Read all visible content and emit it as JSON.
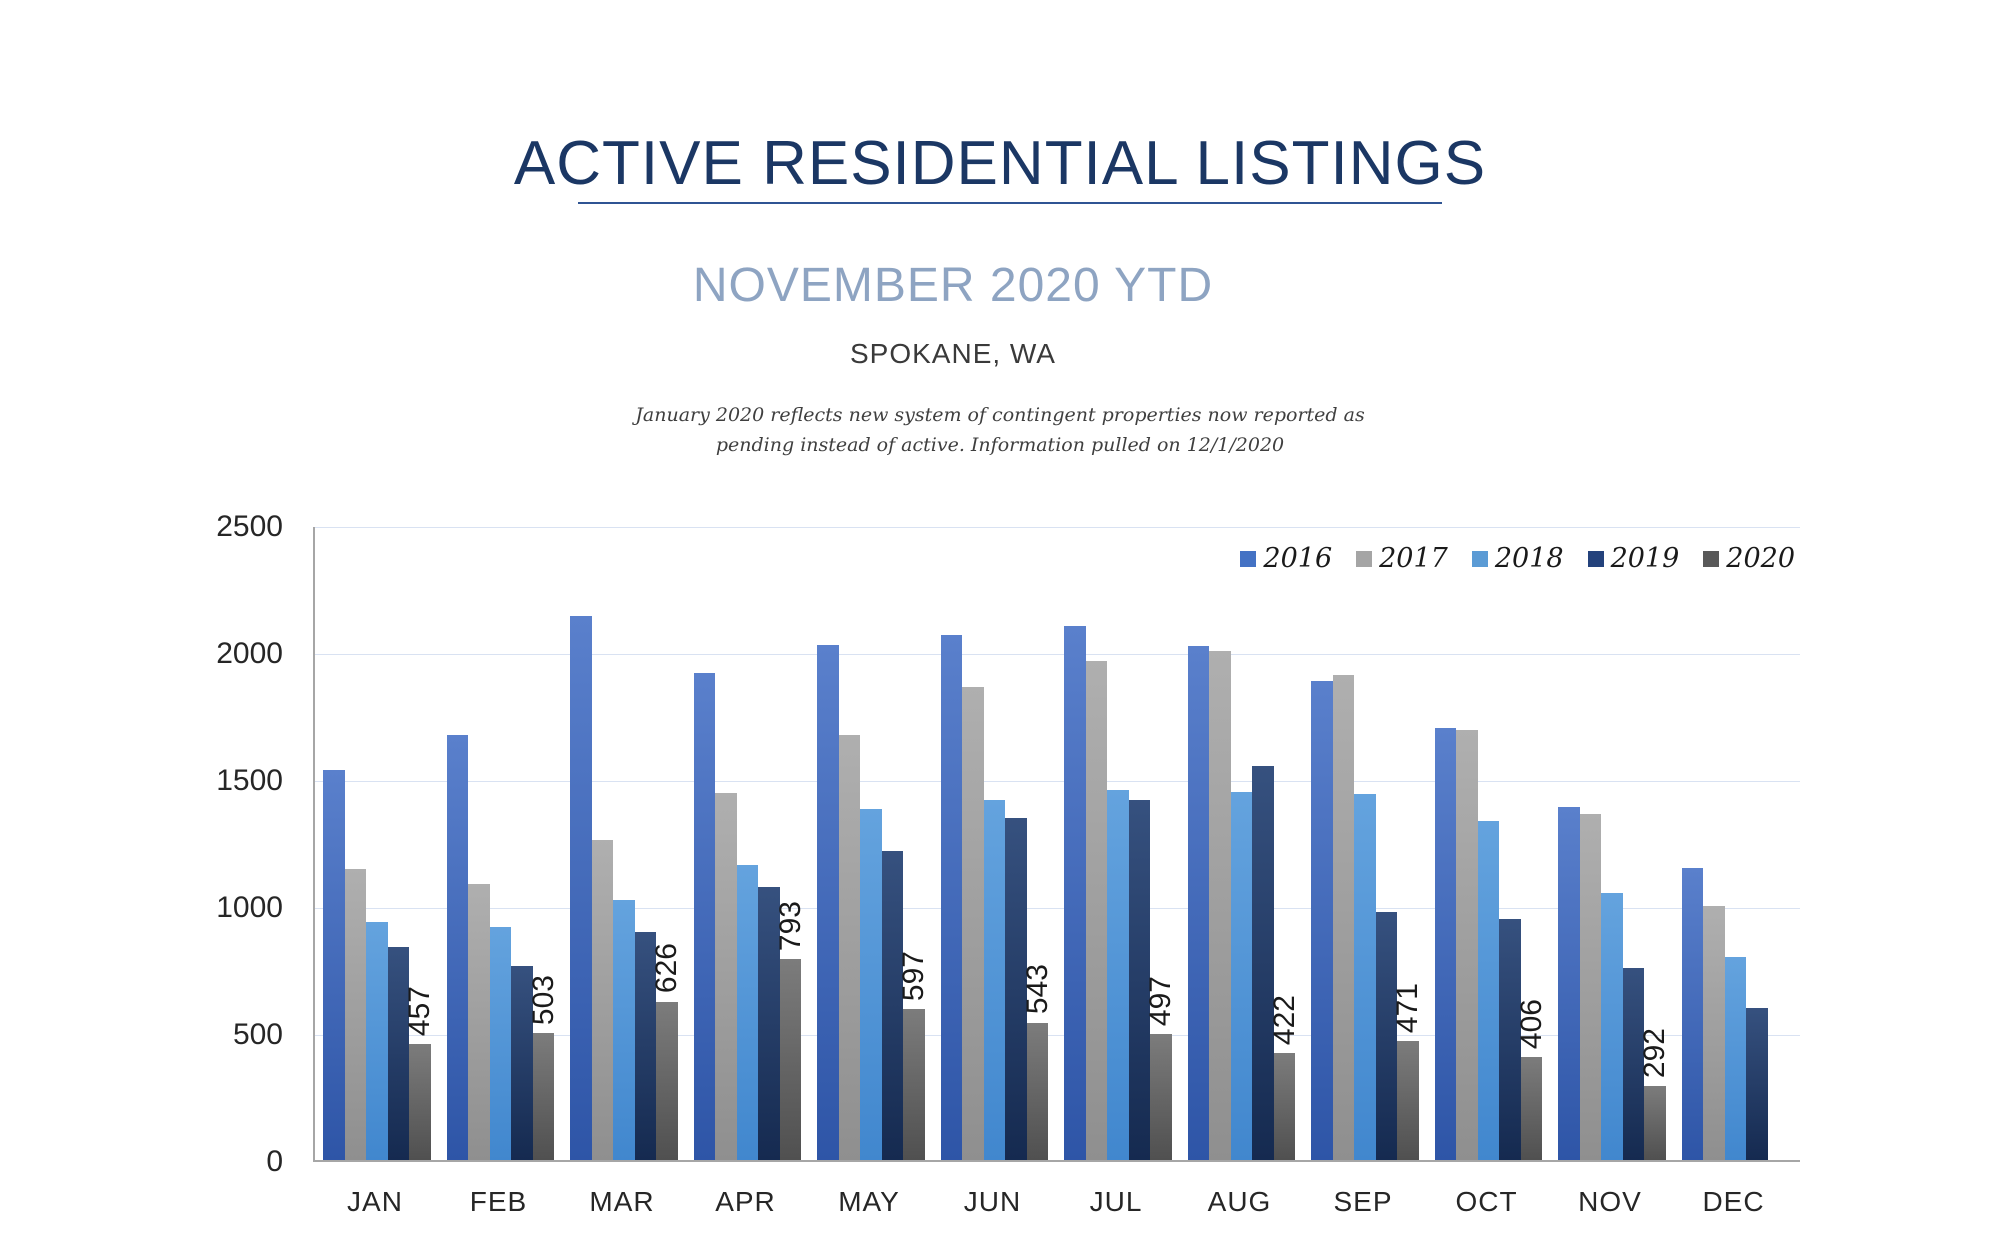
{
  "header": {
    "title": "ACTIVE RESIDENTIAL LISTINGS",
    "subtitle": "NOVEMBER 2020 YTD",
    "location": "SPOKANE, WA",
    "note_line1": "January 2020 reflects new system of contingent properties now reported as",
    "note_line2": "pending instead of active.  Information pulled on 12/1/2020"
  },
  "chart_data": {
    "type": "bar",
    "title": "ACTIVE RESIDENTIAL LISTINGS",
    "subtitle": "NOVEMBER 2020 YTD",
    "categories": [
      "JAN",
      "FEB",
      "MAR",
      "APR",
      "MAY",
      "JUN",
      "JUL",
      "AUG",
      "SEP",
      "OCT",
      "NOV",
      "DEC"
    ],
    "series": [
      {
        "name": "2016",
        "color": "#4472C4",
        "color_top": "#5A80CC",
        "color_bottom": "#2E55A7",
        "values": [
          1540,
          1680,
          2150,
          1925,
          2035,
          2075,
          2110,
          2030,
          1890,
          1705,
          1395,
          1155
        ]
      },
      {
        "name": "2017",
        "color": "#A5A5A5",
        "color_top": "#AFAFAF",
        "color_bottom": "#8F8F8F",
        "values": [
          1150,
          1090,
          1265,
          1450,
          1680,
          1870,
          1970,
          2010,
          1915,
          1700,
          1365,
          1005
        ]
      },
      {
        "name": "2018",
        "color": "#5B9BD5",
        "color_top": "#64A3DE",
        "color_bottom": "#4187CE",
        "values": [
          940,
          920,
          1025,
          1165,
          1385,
          1420,
          1460,
          1455,
          1445,
          1340,
          1055,
          800
        ]
      },
      {
        "name": "2019",
        "color": "#24427C",
        "color_top": "#36517F",
        "color_bottom": "#152A50",
        "values": [
          840,
          765,
          900,
          1080,
          1220,
          1350,
          1420,
          1555,
          980,
          950,
          760,
          600
        ]
      },
      {
        "name": "2020",
        "color": "#595959",
        "color_top": "#7C7C7C",
        "color_bottom": "#505050",
        "values": [
          457,
          503,
          626,
          793,
          597,
          543,
          497,
          422,
          471,
          406,
          292,
          null
        ],
        "data_labels": true
      }
    ],
    "ylim": [
      0,
      2500
    ],
    "ytick_interval": 500,
    "yticks": [
      "0",
      "500",
      "1000",
      "1500",
      "2000",
      "2500"
    ],
    "grid": true,
    "gridline_color": "#D9E2F2",
    "axis_color": "#A6A6A6",
    "legend_position": "top-right",
    "legend_entries": [
      "2016",
      "2017",
      "2018",
      "2019",
      "2020"
    ],
    "data_label_values": [
      "457",
      "503",
      "626",
      "793",
      "597",
      "543",
      "497",
      "422",
      "471",
      "406",
      "292"
    ]
  }
}
